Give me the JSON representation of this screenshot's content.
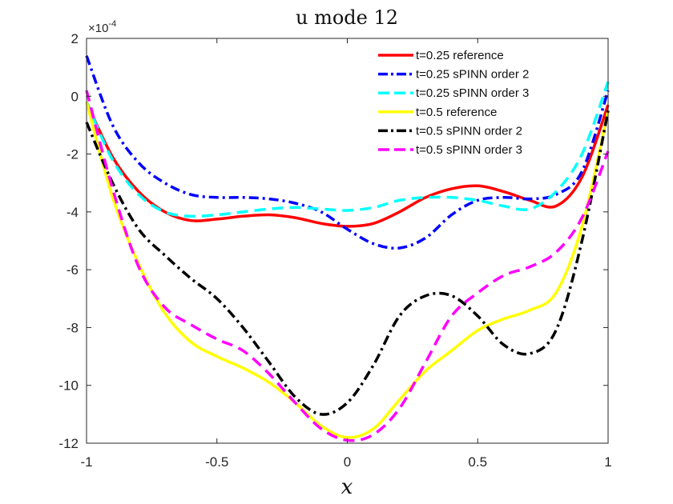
{
  "chart_data": {
    "type": "line",
    "title": "u mode 12",
    "xlabel": "x",
    "ylabel": "",
    "y_multiplier_label": "×10",
    "y_multiplier_exponent": "-4",
    "xlim": [
      -1,
      1
    ],
    "ylim": [
      -12,
      2
    ],
    "xticks": [
      -1,
      -0.5,
      0,
      0.5,
      1
    ],
    "xtick_labels": [
      "-1",
      "-0.5",
      "0",
      "0.5",
      "1"
    ],
    "yticks": [
      -12,
      -10,
      -8,
      -6,
      -4,
      -2,
      0,
      2
    ],
    "ytick_labels": [
      "-12",
      "-10",
      "-8",
      "-6",
      "-4",
      "-2",
      "0",
      "2"
    ],
    "grid": false,
    "legend_position": "top-right",
    "series": [
      {
        "name": "t=0.25 reference",
        "color": "#ff0000",
        "dash": "solid",
        "x": [
          -1,
          -0.9,
          -0.8,
          -0.7,
          -0.6,
          -0.5,
          -0.4,
          -0.3,
          -0.2,
          -0.1,
          0,
          0.1,
          0.2,
          0.3,
          0.4,
          0.5,
          0.6,
          0.7,
          0.8,
          0.9,
          1
        ],
        "y": [
          -0.2,
          -2.1,
          -3.3,
          -4.0,
          -4.3,
          -4.25,
          -4.15,
          -4.1,
          -4.2,
          -4.4,
          -4.5,
          -4.4,
          -4.0,
          -3.5,
          -3.2,
          -3.1,
          -3.3,
          -3.6,
          -3.8,
          -2.8,
          -0.3
        ]
      },
      {
        "name": "t=0.25 sPINN order 2",
        "color": "#0000ff",
        "dash": "dashdot",
        "x": [
          -1,
          -0.9,
          -0.8,
          -0.7,
          -0.6,
          -0.5,
          -0.4,
          -0.3,
          -0.2,
          -0.1,
          0,
          0.1,
          0.2,
          0.3,
          0.4,
          0.5,
          0.6,
          0.7,
          0.8,
          0.9,
          1
        ],
        "y": [
          1.4,
          -1.0,
          -2.3,
          -3.0,
          -3.4,
          -3.5,
          -3.5,
          -3.55,
          -3.7,
          -4.0,
          -4.6,
          -5.1,
          -5.25,
          -4.9,
          -4.1,
          -3.6,
          -3.5,
          -3.55,
          -3.4,
          -2.6,
          0.2
        ]
      },
      {
        "name": "t=0.25 sPINN order 3",
        "color": "#00ffff",
        "dash": "dashed",
        "x": [
          -1,
          -0.9,
          -0.8,
          -0.7,
          -0.6,
          -0.5,
          -0.4,
          -0.3,
          -0.2,
          -0.1,
          0,
          0.1,
          0.2,
          0.3,
          0.4,
          0.5,
          0.6,
          0.7,
          0.8,
          0.9,
          1
        ],
        "y": [
          -0.2,
          -2.2,
          -3.4,
          -4.0,
          -4.15,
          -4.1,
          -4.0,
          -3.9,
          -3.85,
          -3.9,
          -3.95,
          -3.85,
          -3.6,
          -3.5,
          -3.5,
          -3.6,
          -3.8,
          -3.9,
          -3.3,
          -2.0,
          0.5
        ]
      },
      {
        "name": "t=0.5 reference",
        "color": "#ffff00",
        "dash": "solid",
        "x": [
          -1,
          -0.9,
          -0.8,
          -0.7,
          -0.6,
          -0.5,
          -0.4,
          -0.3,
          -0.2,
          -0.1,
          0,
          0.1,
          0.2,
          0.3,
          0.4,
          0.5,
          0.6,
          0.7,
          0.8,
          0.9,
          1
        ],
        "y": [
          -0.2,
          -3.5,
          -5.8,
          -7.5,
          -8.5,
          -9.0,
          -9.4,
          -9.9,
          -10.6,
          -11.4,
          -11.8,
          -11.5,
          -10.5,
          -9.5,
          -8.8,
          -8.1,
          -7.7,
          -7.4,
          -6.8,
          -4.5,
          -0.5
        ]
      },
      {
        "name": "t=0.5 sPINN order 2",
        "color": "#000000",
        "dash": "dashdot",
        "x": [
          -1,
          -0.9,
          -0.8,
          -0.7,
          -0.6,
          -0.5,
          -0.4,
          -0.3,
          -0.2,
          -0.1,
          0,
          0.1,
          0.2,
          0.3,
          0.4,
          0.5,
          0.6,
          0.7,
          0.8,
          0.9,
          1
        ],
        "y": [
          -0.9,
          -3.0,
          -4.6,
          -5.5,
          -6.3,
          -7.0,
          -8.0,
          -9.2,
          -10.4,
          -11.0,
          -10.6,
          -9.3,
          -7.6,
          -6.9,
          -6.9,
          -7.6,
          -8.6,
          -8.9,
          -8.1,
          -5.0,
          -0.5
        ]
      },
      {
        "name": "t=0.5 sPINN order 3",
        "color": "#ff00ff",
        "dash": "dashed",
        "x": [
          -1,
          -0.9,
          -0.8,
          -0.7,
          -0.6,
          -0.5,
          -0.4,
          -0.3,
          -0.2,
          -0.1,
          0,
          0.1,
          0.2,
          0.3,
          0.4,
          0.5,
          0.6,
          0.7,
          0.8,
          0.9,
          1
        ],
        "y": [
          0.2,
          -3.2,
          -5.9,
          -7.3,
          -7.9,
          -8.4,
          -8.8,
          -9.6,
          -10.6,
          -11.5,
          -11.9,
          -11.7,
          -10.8,
          -9.2,
          -7.6,
          -6.8,
          -6.2,
          -5.9,
          -5.4,
          -4.2,
          -1.9
        ]
      }
    ]
  }
}
